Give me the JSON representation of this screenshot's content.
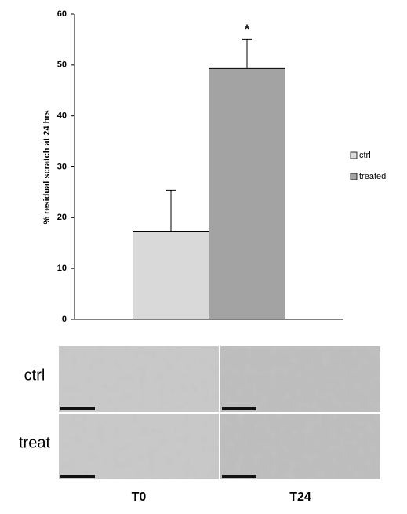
{
  "chart_data": {
    "type": "bar",
    "ylabel": "% residual scratch at 24 hrs",
    "categories": [
      null
    ],
    "series": [
      {
        "name": "ctrl",
        "color": "#d9d9d9",
        "values": [
          17.2
        ],
        "errors": [
          8.2
        ]
      },
      {
        "name": "treated",
        "color": "#a3a3a3",
        "values": [
          49.3
        ],
        "errors": [
          5.7
        ]
      }
    ],
    "annotations": [
      {
        "text": "*",
        "series": 1
      }
    ],
    "ylim": [
      0,
      60
    ],
    "yticks": [
      0,
      10,
      20,
      30,
      40,
      50,
      60
    ],
    "grid": false,
    "legend": "right"
  },
  "panels": {
    "rows": [
      "ctrl",
      "treat"
    ],
    "columns": [
      "T0",
      "T24"
    ]
  }
}
